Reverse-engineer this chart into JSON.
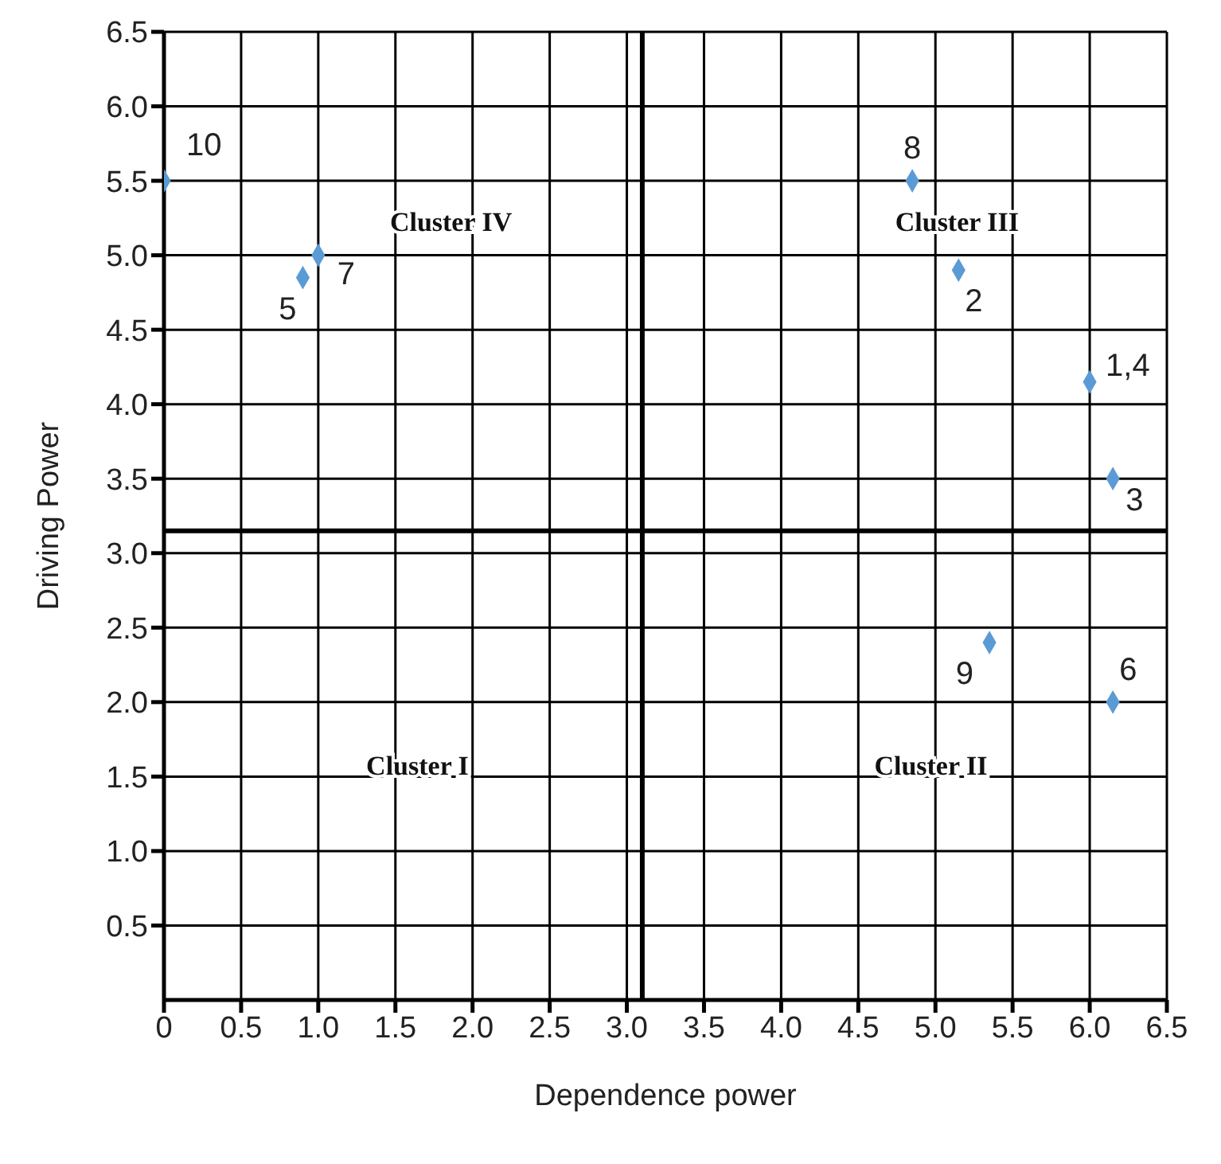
{
  "chart_data": {
    "type": "scatter",
    "xlabel": "Dependence power",
    "ylabel": "Driving Power",
    "x": [
      0,
      1.0,
      0.9,
      4.85,
      5.15,
      6.0,
      6.15,
      5.35,
      6.15
    ],
    "series": [
      {
        "color": "#5b9bd5",
        "values": [
          5.5,
          5.0,
          4.85,
          5.5,
          4.9,
          4.15,
          3.5,
          2.4,
          2.0
        ]
      }
    ],
    "marker": "diamond",
    "xlim": [
      0,
      6.5
    ],
    "xticks": [
      0,
      0.5,
      {
        "value": 1,
        "label": "1.0"
      },
      1.5,
      {
        "value": 2,
        "label": "2.0"
      },
      2.5,
      {
        "value": 3,
        "label": "3.0"
      },
      3.5,
      {
        "value": 4,
        "label": "4.0"
      },
      4.5,
      {
        "value": 5,
        "label": "5.0"
      },
      5.5,
      {
        "value": 6,
        "label": "6.0"
      },
      6.5
    ],
    "ylim": [
      0,
      6.5
    ],
    "yticks": [
      0.5,
      {
        "value": 1,
        "label": "1.0"
      },
      1.5,
      {
        "value": 2,
        "label": "2.0"
      },
      2.5,
      {
        "value": 3,
        "label": "3.0"
      },
      3.5,
      {
        "value": 4,
        "label": "4.0"
      },
      4.5,
      {
        "value": 5,
        "label": "5.0"
      },
      5.5,
      {
        "value": 6,
        "label": "6.0"
      },
      6.5
    ],
    "grid": true,
    "legend": false,
    "ref_lines": [
      {
        "axis": "x",
        "value": 3.1,
        "color": "#000000"
      },
      {
        "axis": "y",
        "value": 3.15,
        "color": "#000000"
      }
    ],
    "annotations": [
      {
        "text": "10",
        "x": 0,
        "y": 5.5
      },
      {
        "text": "7",
        "x": 1.0,
        "y": 5.0
      },
      {
        "text": "5",
        "x": 0.9,
        "y": 4.85
      },
      {
        "text": "8",
        "x": 4.85,
        "y": 5.5
      },
      {
        "text": "2",
        "x": 5.15,
        "y": 4.9
      },
      {
        "text": "1,4",
        "x": 6.0,
        "y": 4.15
      },
      {
        "text": "3",
        "x": 6.15,
        "y": 3.5
      },
      {
        "text": "9",
        "x": 5.35,
        "y": 2.4
      },
      {
        "text": "6",
        "x": 6.15,
        "y": 2.0
      },
      "Cluster I",
      "Cluster II",
      "Cluster III",
      "Cluster IV"
    ]
  }
}
